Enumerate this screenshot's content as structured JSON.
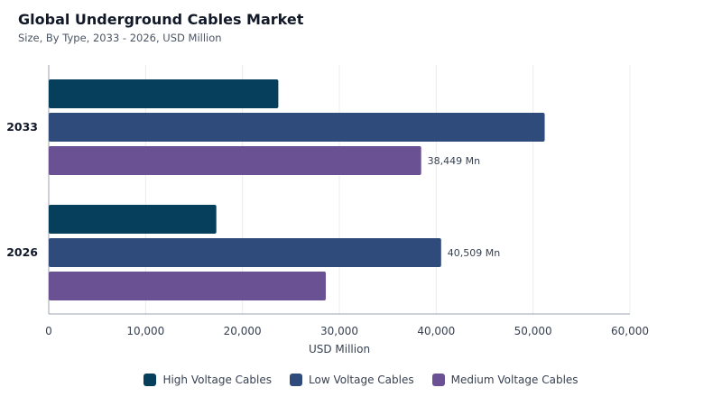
{
  "header": {
    "title": "Global Underground Cables Market",
    "subtitle": "Size, By Type, 2033 - 2026, USD Million"
  },
  "chart_data": {
    "type": "bar",
    "orientation": "horizontal",
    "categories": [
      "2033",
      "2026"
    ],
    "series": [
      {
        "name": "High Voltage Cables",
        "color": "#053f5c",
        "values": [
          23700,
          17300
        ]
      },
      {
        "name": "Low Voltage Cables",
        "color": "#2f4b7c",
        "values": [
          51200,
          40509
        ]
      },
      {
        "name": "Medium Voltage Cables",
        "color": "#6a5193",
        "values": [
          38449,
          28600
        ]
      }
    ],
    "data_labels": [
      {
        "category": "2033",
        "series": "Medium Voltage Cables",
        "text": "38,449 Mn"
      },
      {
        "category": "2026",
        "series": "Low Voltage Cables",
        "text": "40,509 Mn"
      }
    ],
    "xlabel": "USD Million",
    "xlim": [
      0,
      60000
    ],
    "xticks": [
      "0",
      "10,000",
      "20,000",
      "30,000",
      "40,000",
      "50,000",
      "60,000"
    ],
    "grid": true,
    "legend_position": "bottom"
  }
}
